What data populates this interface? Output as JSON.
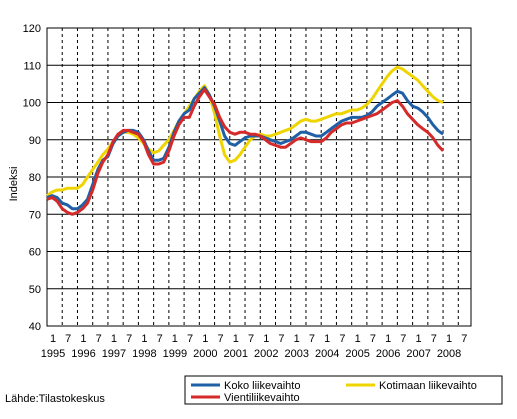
{
  "source": "Lähde:Tilastokeskus",
  "chart_data": {
    "type": "line",
    "ylabel": "Indeksi",
    "ylim": [
      40,
      120
    ],
    "yticks": [
      40,
      50,
      60,
      70,
      80,
      90,
      100,
      110,
      120
    ],
    "xlim": [
      1995.0,
      2008.917
    ],
    "x_month_labels": [
      "1",
      "7",
      "1",
      "7",
      "1",
      "7",
      "1",
      "7",
      "1",
      "7",
      "1",
      "7",
      "1",
      "7",
      "1",
      "7",
      "1",
      "7",
      "1",
      "7",
      "1",
      "7",
      "1",
      "7",
      "1",
      "7",
      "1",
      "7"
    ],
    "x_year_labels": [
      "1995",
      "1996",
      "1997",
      "1998",
      "1999",
      "2000",
      "2001",
      "2002",
      "2003",
      "2004",
      "2005",
      "2006",
      "2007",
      "2008"
    ],
    "grid": {
      "horizontal": "solid",
      "vertical": "dashed"
    },
    "legend_position": "bottom",
    "series": [
      {
        "name": "Koko liikevaihto",
        "color": "#1f5fa6",
        "points": [
          [
            1995.0,
            74.5
          ],
          [
            1995.17,
            75
          ],
          [
            1995.33,
            74.5
          ],
          [
            1995.5,
            73
          ],
          [
            1995.67,
            72.5
          ],
          [
            1995.83,
            71.5
          ],
          [
            1996.0,
            71.5
          ],
          [
            1996.17,
            72.5
          ],
          [
            1996.33,
            74
          ],
          [
            1996.5,
            78
          ],
          [
            1996.67,
            82
          ],
          [
            1996.83,
            84.5
          ],
          [
            1997.0,
            85.5
          ],
          [
            1997.17,
            89
          ],
          [
            1997.33,
            91
          ],
          [
            1997.5,
            92
          ],
          [
            1997.67,
            92.5
          ],
          [
            1997.83,
            92.5
          ],
          [
            1998.0,
            92
          ],
          [
            1998.17,
            90
          ],
          [
            1998.33,
            87
          ],
          [
            1998.5,
            84.5
          ],
          [
            1998.67,
            84.5
          ],
          [
            1998.83,
            85
          ],
          [
            1999.0,
            88
          ],
          [
            1999.17,
            92
          ],
          [
            1999.33,
            95
          ],
          [
            1999.5,
            97
          ],
          [
            1999.67,
            98
          ],
          [
            1999.83,
            101
          ],
          [
            2000.0,
            102.5
          ],
          [
            2000.17,
            104
          ],
          [
            2000.33,
            102
          ],
          [
            2000.5,
            99
          ],
          [
            2000.67,
            95
          ],
          [
            2000.83,
            91
          ],
          [
            2001.0,
            89
          ],
          [
            2001.17,
            88.5
          ],
          [
            2001.33,
            89.5
          ],
          [
            2001.5,
            90.5
          ],
          [
            2001.67,
            91
          ],
          [
            2001.83,
            91
          ],
          [
            2002.0,
            91
          ],
          [
            2002.17,
            90.5
          ],
          [
            2002.33,
            90
          ],
          [
            2002.5,
            89.5
          ],
          [
            2002.67,
            89
          ],
          [
            2002.83,
            89.5
          ],
          [
            2003.0,
            90
          ],
          [
            2003.17,
            91
          ],
          [
            2003.33,
            92
          ],
          [
            2003.5,
            92
          ],
          [
            2003.67,
            91.5
          ],
          [
            2003.83,
            91
          ],
          [
            2004.0,
            91
          ],
          [
            2004.17,
            92
          ],
          [
            2004.33,
            93
          ],
          [
            2004.5,
            94
          ],
          [
            2004.67,
            95
          ],
          [
            2004.83,
            95.5
          ],
          [
            2005.0,
            96
          ],
          [
            2005.17,
            96
          ],
          [
            2005.33,
            96
          ],
          [
            2005.5,
            96.5
          ],
          [
            2005.67,
            97.5
          ],
          [
            2005.83,
            99
          ],
          [
            2006.0,
            100
          ],
          [
            2006.17,
            101
          ],
          [
            2006.33,
            102
          ],
          [
            2006.5,
            103
          ],
          [
            2006.67,
            102.5
          ],
          [
            2006.83,
            100.5
          ],
          [
            2007.0,
            99
          ],
          [
            2007.17,
            98.5
          ],
          [
            2007.33,
            97.5
          ],
          [
            2007.5,
            96
          ],
          [
            2007.67,
            94
          ],
          [
            2007.83,
            92.5
          ],
          [
            2008.0,
            91.5
          ]
        ]
      },
      {
        "name": "Kotimaan liikevaihto",
        "color": "#f0d400",
        "points": [
          [
            1995.0,
            75
          ],
          [
            1995.17,
            76
          ],
          [
            1995.33,
            76.5
          ],
          [
            1995.5,
            76.5
          ],
          [
            1995.67,
            77
          ],
          [
            1995.83,
            77
          ],
          [
            1996.0,
            77
          ],
          [
            1996.17,
            78
          ],
          [
            1996.33,
            80
          ],
          [
            1996.5,
            82
          ],
          [
            1996.67,
            84
          ],
          [
            1996.83,
            86
          ],
          [
            1997.0,
            87.5
          ],
          [
            1997.17,
            89.5
          ],
          [
            1997.33,
            91
          ],
          [
            1997.5,
            92
          ],
          [
            1997.67,
            92
          ],
          [
            1997.83,
            91.5
          ],
          [
            1998.0,
            90.5
          ],
          [
            1998.17,
            89
          ],
          [
            1998.33,
            87.5
          ],
          [
            1998.5,
            86.5
          ],
          [
            1998.67,
            87
          ],
          [
            1998.83,
            88.5
          ],
          [
            1999.0,
            90
          ],
          [
            1999.17,
            92.5
          ],
          [
            1999.33,
            95
          ],
          [
            1999.5,
            97
          ],
          [
            1999.67,
            99
          ],
          [
            1999.83,
            101
          ],
          [
            2000.0,
            103
          ],
          [
            2000.17,
            104.5
          ],
          [
            2000.33,
            102
          ],
          [
            2000.5,
            97
          ],
          [
            2000.67,
            91
          ],
          [
            2000.83,
            86
          ],
          [
            2001.0,
            84
          ],
          [
            2001.17,
            84.5
          ],
          [
            2001.33,
            86
          ],
          [
            2001.5,
            88
          ],
          [
            2001.67,
            90
          ],
          [
            2001.83,
            91
          ],
          [
            2002.0,
            91.5
          ],
          [
            2002.17,
            91
          ],
          [
            2002.33,
            91
          ],
          [
            2002.5,
            91.5
          ],
          [
            2002.67,
            92
          ],
          [
            2002.83,
            92.5
          ],
          [
            2003.0,
            93
          ],
          [
            2003.17,
            94
          ],
          [
            2003.33,
            95
          ],
          [
            2003.5,
            95.5
          ],
          [
            2003.67,
            95
          ],
          [
            2003.83,
            95
          ],
          [
            2004.0,
            95.5
          ],
          [
            2004.17,
            96
          ],
          [
            2004.33,
            96.5
          ],
          [
            2004.5,
            97
          ],
          [
            2004.67,
            97
          ],
          [
            2004.83,
            97.5
          ],
          [
            2005.0,
            98
          ],
          [
            2005.17,
            98
          ],
          [
            2005.33,
            98.5
          ],
          [
            2005.5,
            99.5
          ],
          [
            2005.67,
            101
          ],
          [
            2005.83,
            103
          ],
          [
            2006.0,
            105
          ],
          [
            2006.17,
            107
          ],
          [
            2006.33,
            108.5
          ],
          [
            2006.5,
            109.5
          ],
          [
            2006.67,
            109
          ],
          [
            2006.83,
            108
          ],
          [
            2007.0,
            107
          ],
          [
            2007.17,
            106
          ],
          [
            2007.33,
            104.5
          ],
          [
            2007.5,
            103
          ],
          [
            2007.67,
            101.5
          ],
          [
            2007.83,
            100.5
          ],
          [
            2008.0,
            100
          ]
        ]
      },
      {
        "name": "Vientiliikevaihto",
        "color": "#d42a2a",
        "points": [
          [
            1995.0,
            74
          ],
          [
            1995.17,
            74.5
          ],
          [
            1995.33,
            73.5
          ],
          [
            1995.5,
            71.5
          ],
          [
            1995.67,
            70.5
          ],
          [
            1995.83,
            70
          ],
          [
            1996.0,
            70.5
          ],
          [
            1996.17,
            71.5
          ],
          [
            1996.33,
            73
          ],
          [
            1996.5,
            76.5
          ],
          [
            1996.67,
            81
          ],
          [
            1996.83,
            84
          ],
          [
            1997.0,
            86
          ],
          [
            1997.17,
            89.5
          ],
          [
            1997.33,
            91.5
          ],
          [
            1997.5,
            92.5
          ],
          [
            1997.67,
            92.5
          ],
          [
            1997.83,
            92
          ],
          [
            1998.0,
            91.5
          ],
          [
            1998.17,
            89.5
          ],
          [
            1998.33,
            86
          ],
          [
            1998.5,
            83.5
          ],
          [
            1998.67,
            83.5
          ],
          [
            1998.83,
            84
          ],
          [
            1999.0,
            87
          ],
          [
            1999.17,
            91
          ],
          [
            1999.33,
            94
          ],
          [
            1999.5,
            96
          ],
          [
            1999.67,
            96
          ],
          [
            1999.83,
            99
          ],
          [
            2000.0,
            101.5
          ],
          [
            2000.17,
            103.5
          ],
          [
            2000.33,
            101.5
          ],
          [
            2000.5,
            99.5
          ],
          [
            2000.67,
            96
          ],
          [
            2000.83,
            93.5
          ],
          [
            2001.0,
            92
          ],
          [
            2001.17,
            91.5
          ],
          [
            2001.33,
            92
          ],
          [
            2001.5,
            92
          ],
          [
            2001.67,
            91.5
          ],
          [
            2001.83,
            91.5
          ],
          [
            2002.0,
            91
          ],
          [
            2002.17,
            90
          ],
          [
            2002.33,
            89
          ],
          [
            2002.5,
            88.5
          ],
          [
            2002.67,
            88
          ],
          [
            2002.83,
            88
          ],
          [
            2003.0,
            89
          ],
          [
            2003.17,
            90
          ],
          [
            2003.33,
            90.5
          ],
          [
            2003.5,
            90
          ],
          [
            2003.67,
            89.5
          ],
          [
            2003.83,
            89.5
          ],
          [
            2004.0,
            89.5
          ],
          [
            2004.17,
            90.5
          ],
          [
            2004.33,
            92
          ],
          [
            2004.5,
            93
          ],
          [
            2004.67,
            94
          ],
          [
            2004.83,
            94.5
          ],
          [
            2005.0,
            94.5
          ],
          [
            2005.17,
            95
          ],
          [
            2005.33,
            95.5
          ],
          [
            2005.5,
            96
          ],
          [
            2005.67,
            96.5
          ],
          [
            2005.83,
            97
          ],
          [
            2006.0,
            98
          ],
          [
            2006.17,
            99
          ],
          [
            2006.33,
            100
          ],
          [
            2006.5,
            100.5
          ],
          [
            2006.67,
            99
          ],
          [
            2006.83,
            97
          ],
          [
            2007.0,
            95.5
          ],
          [
            2007.17,
            94
          ],
          [
            2007.33,
            93
          ],
          [
            2007.5,
            92
          ],
          [
            2007.67,
            90.5
          ],
          [
            2007.83,
            88.5
          ],
          [
            2008.0,
            87
          ]
        ]
      }
    ]
  }
}
